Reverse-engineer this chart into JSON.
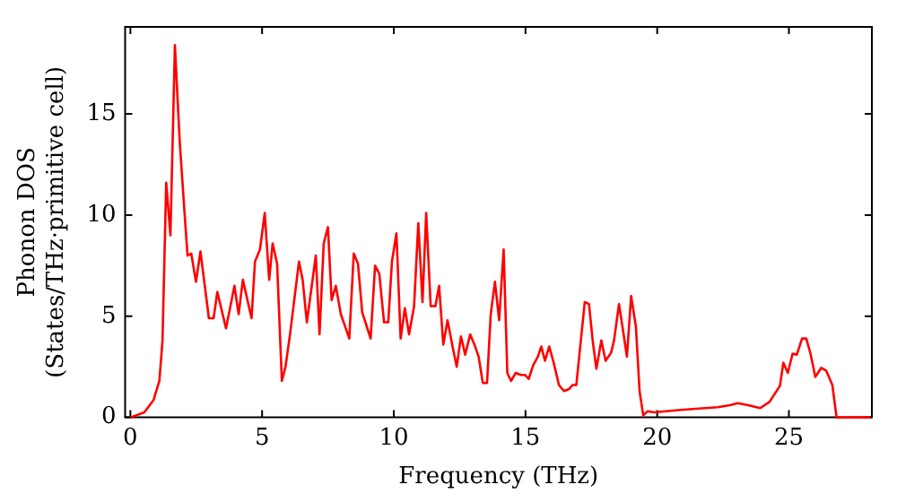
{
  "chart_data": {
    "type": "line",
    "xlabel": "Frequency (THz)",
    "ylabel": "Phonon DOS\n(States/THz·primitive cell)",
    "xlim": [
      -0.2,
      28.15
    ],
    "ylim": [
      0,
      19.3
    ],
    "xticks": [
      0,
      5,
      10,
      15,
      20,
      25
    ],
    "yticks": [
      0,
      5,
      10,
      15
    ],
    "grid": false,
    "legend": false,
    "marker": "none",
    "line_style": "solid",
    "series": [
      {
        "color": "#ff0000",
        "x": [
          0,
          0.53,
          0.88,
          1.1,
          1.22,
          1.36,
          1.52,
          1.69,
          1.87,
          2.03,
          2.17,
          2.31,
          2.49,
          2.66,
          2.98,
          3.16,
          3.3,
          3.63,
          3.95,
          4.11,
          4.27,
          4.6,
          4.73,
          4.92,
          5.1,
          5.27,
          5.4,
          5.57,
          5.75,
          5.89,
          6.07,
          6.4,
          6.54,
          6.7,
          7.04,
          7.18,
          7.34,
          7.5,
          7.64,
          7.8,
          7.99,
          8.31,
          8.48,
          8.64,
          8.8,
          9.12,
          9.29,
          9.45,
          9.63,
          9.79,
          9.93,
          10.1,
          10.26,
          10.42,
          10.58,
          10.77,
          10.93,
          11.09,
          11.23,
          11.4,
          11.58,
          11.72,
          11.88,
          12.04,
          12.23,
          12.39,
          12.55,
          12.71,
          12.9,
          13.09,
          13.22,
          13.38,
          13.54,
          13.68,
          13.84,
          14.0,
          14.17,
          14.31,
          14.45,
          14.63,
          14.82,
          14.98,
          15.12,
          15.3,
          15.47,
          15.6,
          15.74,
          15.9,
          16.07,
          16.27,
          16.46,
          16.65,
          16.79,
          16.93,
          17.25,
          17.41,
          17.55,
          17.69,
          17.88,
          18.04,
          18.25,
          18.36,
          18.55,
          18.69,
          18.85,
          19.01,
          19.19,
          19.33,
          19.47,
          19.63,
          19.87,
          20.9,
          22.3,
          22.76,
          23.06,
          23.45,
          23.91,
          24.26,
          24.66,
          24.79,
          24.96,
          25.14,
          25.3,
          25.5,
          25.66,
          25.82,
          26.0,
          26.23,
          26.42,
          26.65,
          26.81,
          28.1
        ],
        "values": [
          0,
          0.25,
          0.86,
          1.8,
          3.8,
          11.6,
          9.0,
          18.4,
          13.7,
          10.6,
          8.0,
          8.1,
          6.7,
          8.2,
          4.9,
          4.9,
          6.2,
          4.4,
          6.5,
          5.1,
          6.8,
          4.9,
          7.7,
          8.3,
          10.1,
          6.8,
          8.6,
          7.6,
          1.8,
          2.5,
          4.2,
          7.7,
          6.8,
          4.7,
          8.0,
          4.1,
          8.6,
          9.4,
          5.8,
          6.5,
          5.1,
          3.9,
          8.1,
          7.6,
          5.2,
          3.9,
          7.5,
          7.1,
          4.7,
          4.7,
          7.7,
          9.1,
          3.9,
          5.4,
          4.1,
          5.5,
          9.6,
          5.7,
          10.1,
          5.5,
          5.5,
          6.5,
          3.6,
          4.8,
          3.5,
          2.5,
          4.0,
          3.1,
          4.1,
          3.5,
          3.0,
          1.7,
          1.7,
          5.1,
          6.7,
          4.8,
          8.3,
          2.2,
          1.8,
          2.2,
          2.1,
          2.1,
          1.9,
          2.6,
          3.0,
          3.5,
          2.8,
          3.5,
          2.7,
          1.6,
          1.3,
          1.4,
          1.6,
          1.6,
          5.7,
          5.6,
          3.8,
          2.4,
          3.8,
          2.8,
          3.2,
          3.8,
          5.6,
          4.4,
          3.0,
          6.0,
          4.5,
          1.3,
          0.1,
          0.3,
          0.25,
          0.37,
          0.5,
          0.6,
          0.7,
          0.6,
          0.46,
          0.76,
          1.56,
          2.7,
          2.2,
          3.15,
          3.1,
          3.9,
          3.9,
          3.15,
          2.0,
          2.45,
          2.3,
          1.6,
          0,
          0
        ]
      }
    ]
  }
}
